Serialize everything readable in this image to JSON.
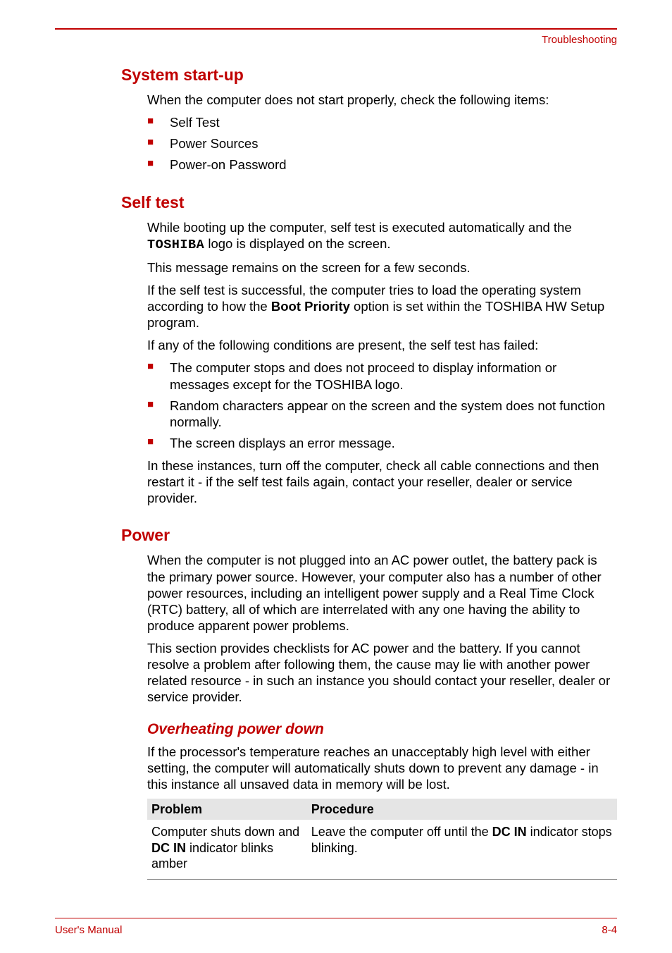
{
  "header": {
    "section_label": "Troubleshooting"
  },
  "section1": {
    "heading": "System start-up",
    "intro": "When the computer does not start properly, check the following items:",
    "items": [
      "Self Test",
      "Power Sources",
      "Power-on Password"
    ]
  },
  "section2": {
    "heading": "Self test",
    "p1_a": "While booting up the computer, self test is executed automatically and the ",
    "p1_logo": "TOSHIBA",
    "p1_b": " logo is displayed on the screen.",
    "p2": "This message remains on the screen for a few seconds.",
    "p3_a": "If the self test is successful, the computer tries to load the operating system according to how the ",
    "p3_bold": "Boot Priority",
    "p3_b": " option is set within the TOSHIBA HW Setup program.",
    "p4": "If any of the following conditions are present, the self test has failed:",
    "items": [
      "The computer stops and does not proceed to display information or messages except for the TOSHIBA logo.",
      "Random characters appear on the screen and the system does not function normally.",
      "The screen displays an error message."
    ],
    "p5": "In these instances, turn off the computer, check all cable connections and then restart it - if the self test fails again, contact your reseller, dealer or service provider."
  },
  "section3": {
    "heading": "Power",
    "p1": "When the computer is not plugged into an AC power outlet, the battery pack is the primary power source. However, your computer also has a number of other power resources, including an intelligent power supply and a Real Time Clock (RTC) battery, all of which are interrelated with any one having the ability to produce apparent power problems.",
    "p2": "This section provides checklists for AC power and the battery. If you cannot resolve a problem after following them, the cause may lie with another power related resource - in such an instance you should contact your reseller, dealer or service provider.",
    "sub": {
      "heading": "Overheating power down",
      "p1": "If the processor's temperature reaches an unacceptably high level with either setting, the computer will automatically shuts down to prevent any damage - in this instance all unsaved data in memory will be lost.",
      "table": {
        "col1_header": "Problem",
        "col2_header": "Procedure",
        "row1_col1_a": "Computer shuts down and ",
        "row1_col1_bold": "DC IN",
        "row1_col1_b": " indicator blinks amber",
        "row1_col2_a": "Leave the computer off until the ",
        "row1_col2_bold": "DC IN",
        "row1_col2_b": " indicator stops blinking."
      }
    }
  },
  "footer": {
    "left": "User's Manual",
    "right": "8-4"
  },
  "colors": {
    "accent": "#c00000",
    "text": "#000000",
    "table_header_bg": "#e5e5e5",
    "table_border": "#888888",
    "background": "#ffffff"
  }
}
